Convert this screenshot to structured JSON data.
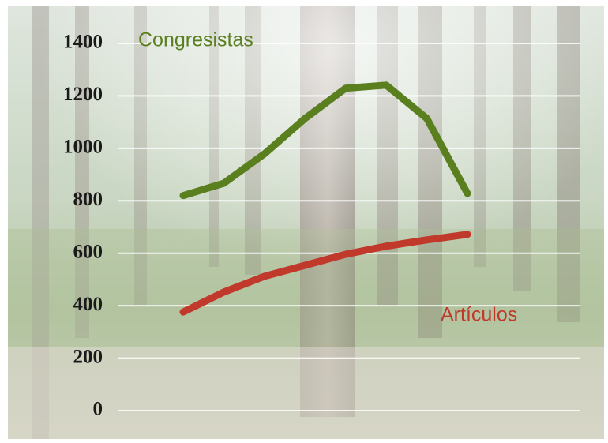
{
  "chart_data": {
    "type": "line",
    "categories": [
      null,
      null,
      null,
      null,
      null,
      null,
      null,
      null
    ],
    "series": [
      {
        "name": "Congresistas",
        "color": "#5a7f1e",
        "values": [
          820,
          867,
          979,
          1114,
          1229,
          1241,
          1114,
          828
        ]
      },
      {
        "name": "Artículos",
        "color": "#c0392b",
        "values": [
          376,
          452,
          512,
          554,
          596,
          627,
          651,
          672
        ]
      }
    ],
    "ylim": [
      0,
      1400
    ],
    "yticks": [
      0,
      200,
      400,
      600,
      800,
      1000,
      1200,
      1400
    ],
    "grid": true
  }
}
